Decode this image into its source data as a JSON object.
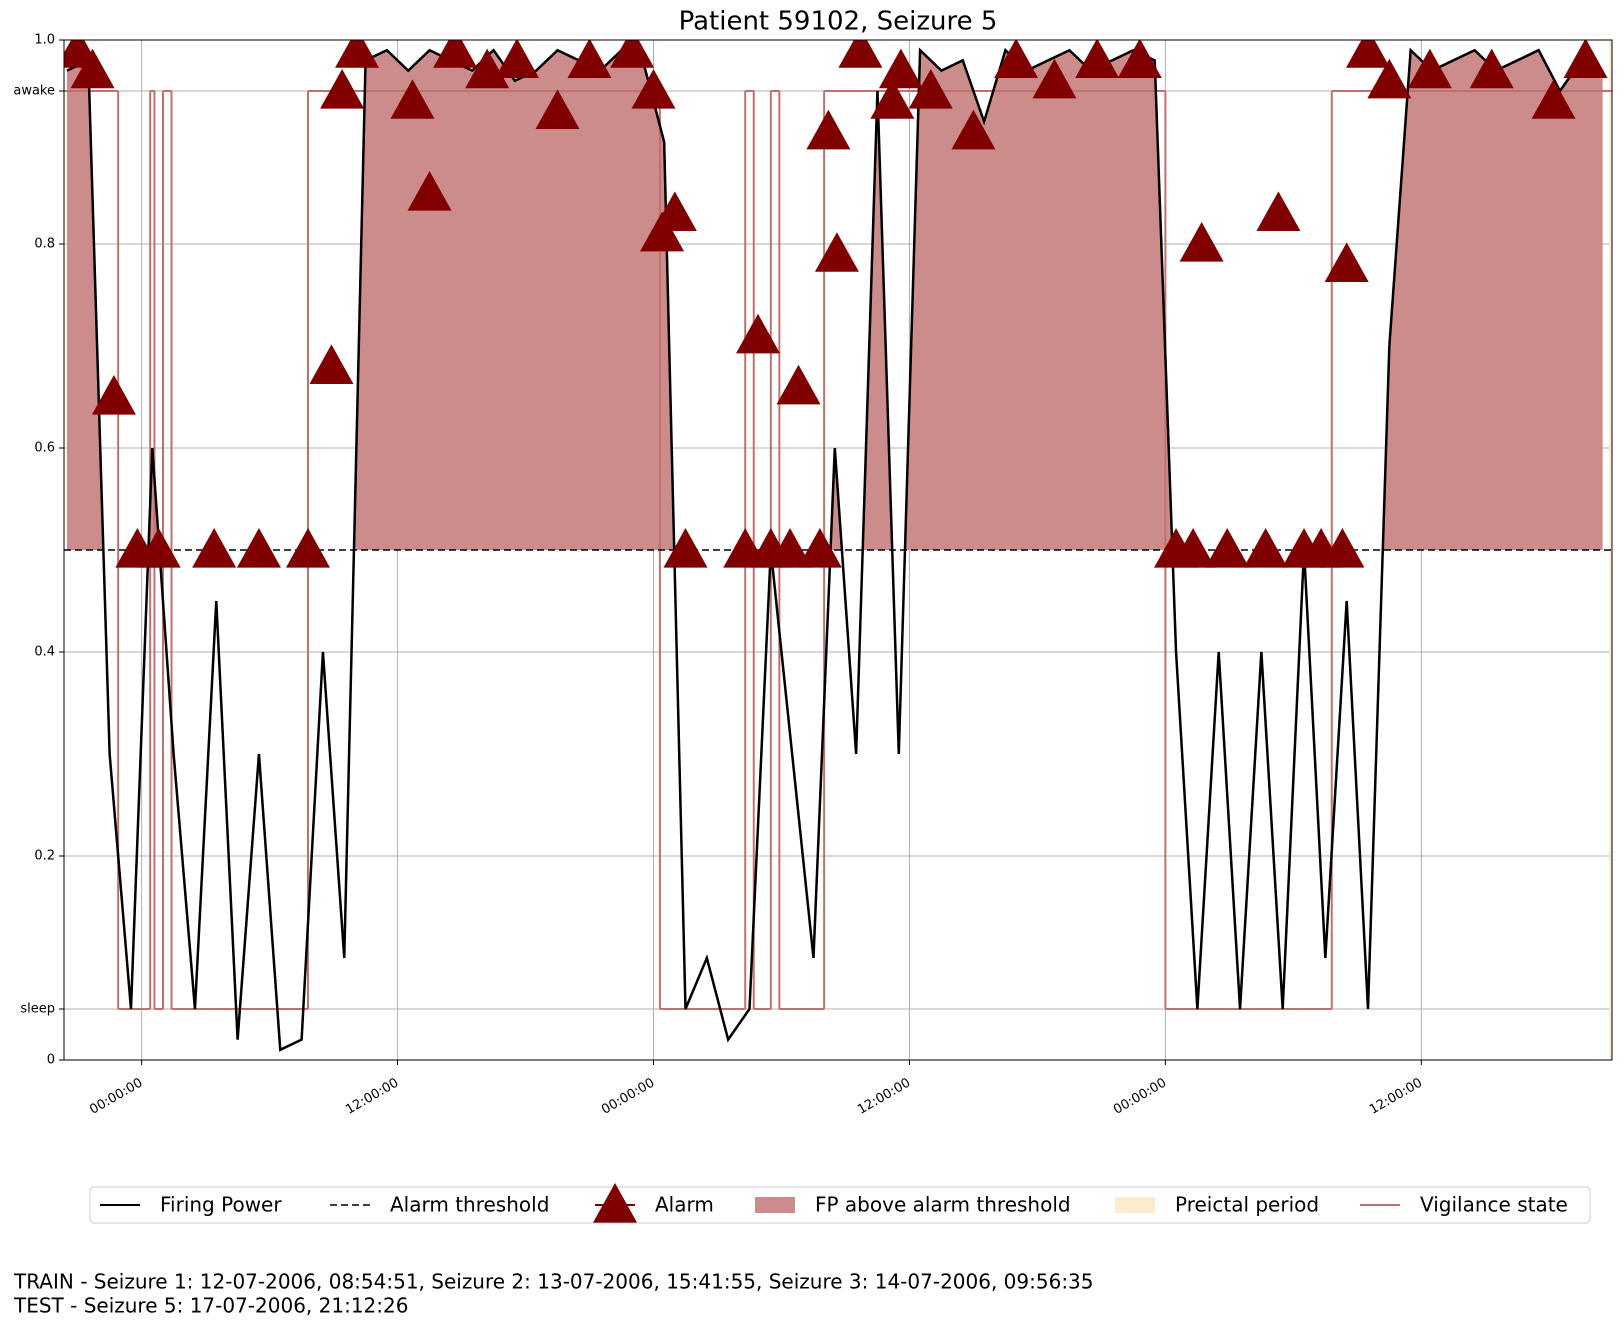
{
  "chart_data": {
    "type": "line",
    "title": "Patient 59102, Seizure 5",
    "xlim": [
      -3.64,
      68.94
    ],
    "xticks": [
      {
        "value": 0,
        "label": "00:00:00"
      },
      {
        "value": 12,
        "label": "12:00:00"
      },
      {
        "value": 24,
        "label": "00:00:00"
      },
      {
        "value": 36,
        "label": "12:00:00"
      },
      {
        "value": 48,
        "label": "00:00:00"
      },
      {
        "value": 60,
        "label": "12:00:00"
      }
    ],
    "ylim": [
      0,
      1
    ],
    "yticks": [
      0,
      0.2,
      0.4,
      0.6,
      0.8,
      {
        "value": 1,
        "label": "1.0"
      },
      {
        "value": 0.95,
        "label": "awake"
      },
      {
        "value": 0.05,
        "label": "sleep"
      }
    ],
    "grid": true,
    "x": [
      -3.5,
      -2.5,
      -1.5,
      -0.5,
      0.5,
      1.5,
      2.5,
      3.5,
      4.5,
      5.5,
      6.5,
      7.5,
      8.5,
      9.5,
      10.5,
      11.5,
      12.5,
      13.5,
      14.5,
      15.5,
      16.5,
      17.5,
      18.5,
      19.5,
      20.5,
      21.5,
      22.5,
      23.5,
      24.5,
      25.5,
      26.5,
      27.5,
      28.5,
      29.5,
      30.5,
      31.5,
      32.5,
      33.5,
      34.5,
      35.5,
      36.5,
      37.5,
      38.5,
      39.5,
      40.5,
      41.5,
      42.5,
      43.5,
      44.5,
      45.5,
      46.5,
      47.5,
      48.5,
      49.5,
      50.5,
      51.5,
      52.5,
      53.5,
      54.5,
      55.5,
      56.5,
      57.5,
      58.5,
      59.5,
      60.5,
      61.5,
      62.5,
      63.5,
      64.5,
      65.5,
      66.5,
      67.5,
      68.5
    ],
    "series": [
      {
        "name": "Firing Power",
        "color": "#000000",
        "values": [
          0.97,
          0.98,
          0.3,
          0.05,
          0.6,
          0.3,
          0.05,
          0.45,
          0.02,
          0.3,
          0.01,
          0.02,
          0.4,
          0.1,
          0.98,
          0.99,
          0.97,
          0.99,
          0.98,
          0.97,
          0.99,
          0.96,
          0.97,
          0.99,
          0.98,
          0.97,
          0.99,
          0.98,
          0.9,
          0.05,
          0.1,
          0.02,
          0.05,
          0.5,
          0.3,
          0.1,
          0.6,
          0.3,
          0.95,
          0.3,
          0.99,
          0.97,
          0.98,
          0.92,
          0.99,
          0.97,
          0.98,
          0.99,
          0.97,
          0.98,
          0.99,
          0.98,
          0.4,
          0.05,
          0.4,
          0.05,
          0.4,
          0.05,
          0.5,
          0.1,
          0.45,
          0.05,
          0.7,
          0.99,
          0.97,
          0.98,
          0.99,
          0.97,
          0.98,
          0.99,
          0.95,
          0.98,
          0.97
        ]
      }
    ],
    "threshold": {
      "name": "Alarm threshold",
      "value": 0.5,
      "color": "#000000"
    },
    "fp_above": {
      "name": "FP above alarm threshold",
      "color": "#cd8c8c"
    },
    "alarms": {
      "name": "Alarm",
      "color": "#800000",
      "x": [
        -3.0,
        -2.3,
        -1.3,
        -0.2,
        0.8,
        3.4,
        5.5,
        7.8,
        8.9,
        9.4,
        10.1,
        12.7,
        13.5,
        14.7,
        16.2,
        17.6,
        19.5,
        21.0,
        23.0,
        24.0,
        24.4,
        25.0,
        25.5,
        28.3,
        28.9,
        29.5,
        30.4,
        30.8,
        31.8,
        32.2,
        32.6,
        33.7,
        35.2,
        35.6,
        37.0,
        39.0,
        41.0,
        42.8,
        44.8,
        46.8,
        48.5,
        49.3,
        49.7,
        50.9,
        52.7,
        53.3,
        54.5,
        55.3,
        56.3,
        56.5,
        57.5,
        58.5,
        60.4,
        63.3,
        66.2,
        67.7
      ],
      "values": [
        0.99,
        0.97,
        0.65,
        0.5,
        0.5,
        0.5,
        0.5,
        0.5,
        0.68,
        0.95,
        0.99,
        0.94,
        0.85,
        0.99,
        0.97,
        0.98,
        0.93,
        0.98,
        0.99,
        0.95,
        0.81,
        0.83,
        0.5,
        0.5,
        0.71,
        0.5,
        0.5,
        0.66,
        0.5,
        0.91,
        0.79,
        0.99,
        0.94,
        0.97,
        0.95,
        0.91,
        0.98,
        0.96,
        0.98,
        0.98,
        0.5,
        0.5,
        0.8,
        0.5,
        0.5,
        0.83,
        0.5,
        0.5,
        0.5,
        0.78,
        0.99,
        0.96,
        0.97,
        0.97,
        0.94,
        0.98
      ]
    },
    "preictal": {
      "name": "Preictal period",
      "color": "#fdebd0",
      "x": [
        68.8,
        68.94
      ]
    },
    "vigilance": {
      "name": "Vigilance state",
      "color": "#c0706e",
      "x": [
        -3.64,
        -1.1,
        0.4,
        0.6,
        1.0,
        1.4,
        7.8,
        24.3,
        28.3,
        28.7,
        29.5,
        29.9,
        32.0,
        48.0,
        55.8
      ],
      "values": [
        0.95,
        0.05,
        0.95,
        0.05,
        0.95,
        0.05,
        0.95,
        0.05,
        0.95,
        0.05,
        0.95,
        0.05,
        0.95,
        0.05,
        0.95
      ]
    },
    "footer": [
      "TRAIN - Seizure 1: 12-07-2006, 08:54:51, Seizure 2: 13-07-2006, 15:41:55, Seizure 3: 14-07-2006, 09:56:35",
      "TEST - Seizure 5: 17-07-2006, 21:12:26"
    ]
  }
}
